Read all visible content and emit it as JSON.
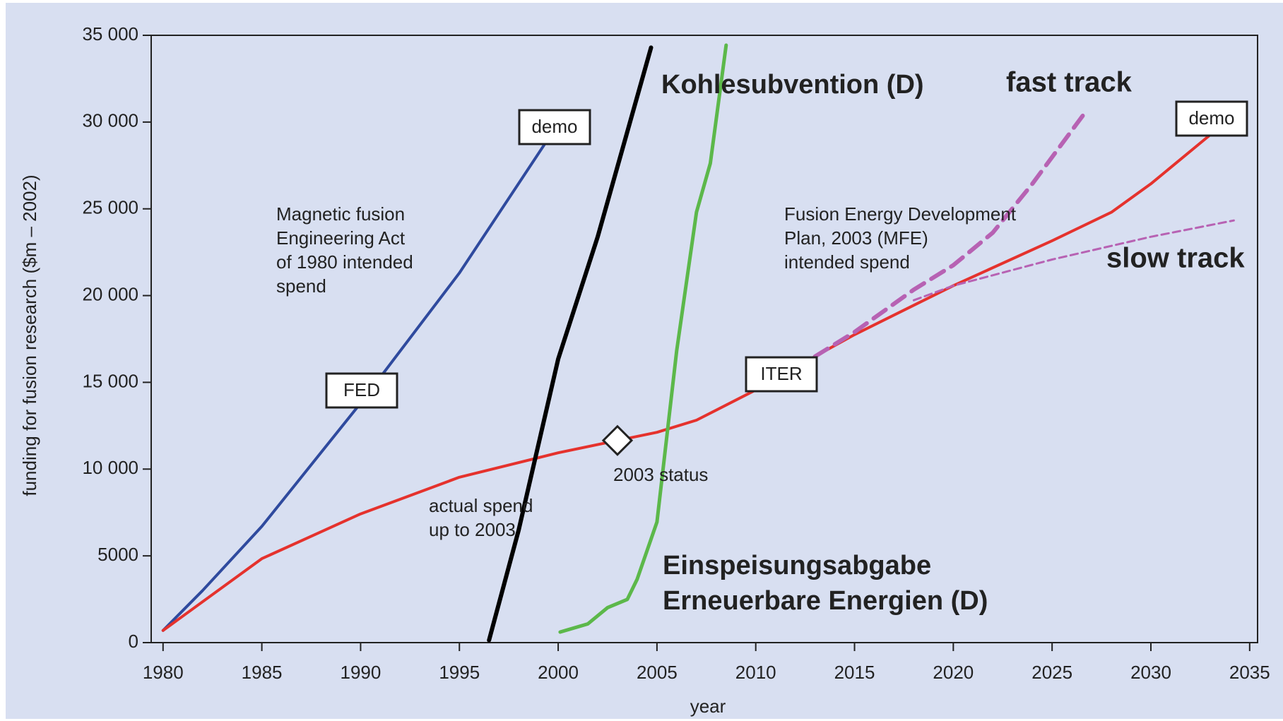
{
  "chart_data": {
    "type": "line",
    "xlabel": "year",
    "ylabel": "funding for fusion research ($m – 2002)",
    "xlim": [
      1979.4,
      2035.4
    ],
    "xticks": [
      1980,
      1985,
      1990,
      1995,
      2000,
      2005,
      2010,
      2015,
      2020,
      2025,
      2030,
      2035
    ],
    "ylim": [
      0,
      35000
    ],
    "yticks": [
      0,
      5000,
      {
        "value": 10000,
        "label": "10 000"
      },
      {
        "value": 15000,
        "label": "15 000"
      },
      {
        "value": 20000,
        "label": "20 000"
      },
      {
        "value": 25000,
        "label": "25 000"
      },
      {
        "value": 30000,
        "label": "30 000"
      },
      {
        "value": 35000,
        "label": "35 000"
      }
    ],
    "series": [
      {
        "color": "#2f4a9e",
        "width": 4,
        "dash": false,
        "x": [
          1980,
          1982,
          1985,
          1990,
          1995,
          1999.3
        ],
        "values": [
          700,
          3000,
          6700,
          13800,
          21300,
          28700
        ]
      },
      {
        "color": "#e5322d",
        "width": 4,
        "dash": false,
        "x": [
          1980,
          1985,
          1990,
          1995,
          2000,
          2003,
          2005,
          2007,
          2010,
          2013,
          2015,
          2020,
          2025,
          2028,
          2030,
          2033
        ],
        "values": [
          700,
          4840,
          7420,
          9530,
          10940,
          11650,
          12120,
          12820,
          14560,
          16490,
          17750,
          20570,
          23160,
          24800,
          26440,
          29260
        ]
      },
      {
        "name": "fast track",
        "color": "#b762b3",
        "width": 6,
        "dash": true,
        "x": [
          2013,
          2015,
          2018,
          2020,
          2022,
          2024,
          2026.6
        ],
        "values": [
          16490,
          17900,
          20340,
          21750,
          23630,
          26440,
          30440
        ]
      },
      {
        "name": "slow track",
        "color": "#b762b3",
        "width": 3,
        "dash": true,
        "x": [
          2018,
          2020,
          2025,
          2030,
          2034.2
        ],
        "values": [
          19730,
          20570,
          22080,
          23390,
          24330
        ]
      },
      {
        "name": "Kohlesubvention (D)",
        "color": "#000000",
        "width": 6,
        "dash": false,
        "x": [
          1996.5,
          1998,
          2000,
          2002,
          2004.7
        ],
        "values": [
          140,
          6480,
          16350,
          23390,
          34290
        ]
      },
      {
        "color": "#5cb84a",
        "width": 5,
        "dash": false,
        "x": [
          2000.1,
          2001.5,
          2002.5,
          2003.5,
          2004,
          2005,
          2006,
          2007,
          2007.7,
          2008.5
        ],
        "values": [
          610,
          1080,
          2020,
          2490,
          3660,
          6950,
          16820,
          24800,
          27620,
          34430
        ]
      }
    ],
    "status_point": {
      "x": 2003,
      "y": 11650,
      "label": "2003 status"
    },
    "boxes": [
      "demo",
      "FED",
      "ITER",
      "demo"
    ],
    "annotations": [
      {
        "lines": [
          "Magnetic fusion",
          "Engineering Act",
          "of 1980 intended",
          "spend"
        ]
      },
      {
        "lines": [
          "actual spend",
          "up to 2003"
        ]
      },
      {
        "lines": [
          "Fusion Energy Development",
          "Plan, 2003 (MFE)",
          "intended spend"
        ]
      },
      {
        "lines": [
          "Einspeisungsabgabe",
          "Erneuerbare Energien (D)"
        ]
      }
    ]
  }
}
